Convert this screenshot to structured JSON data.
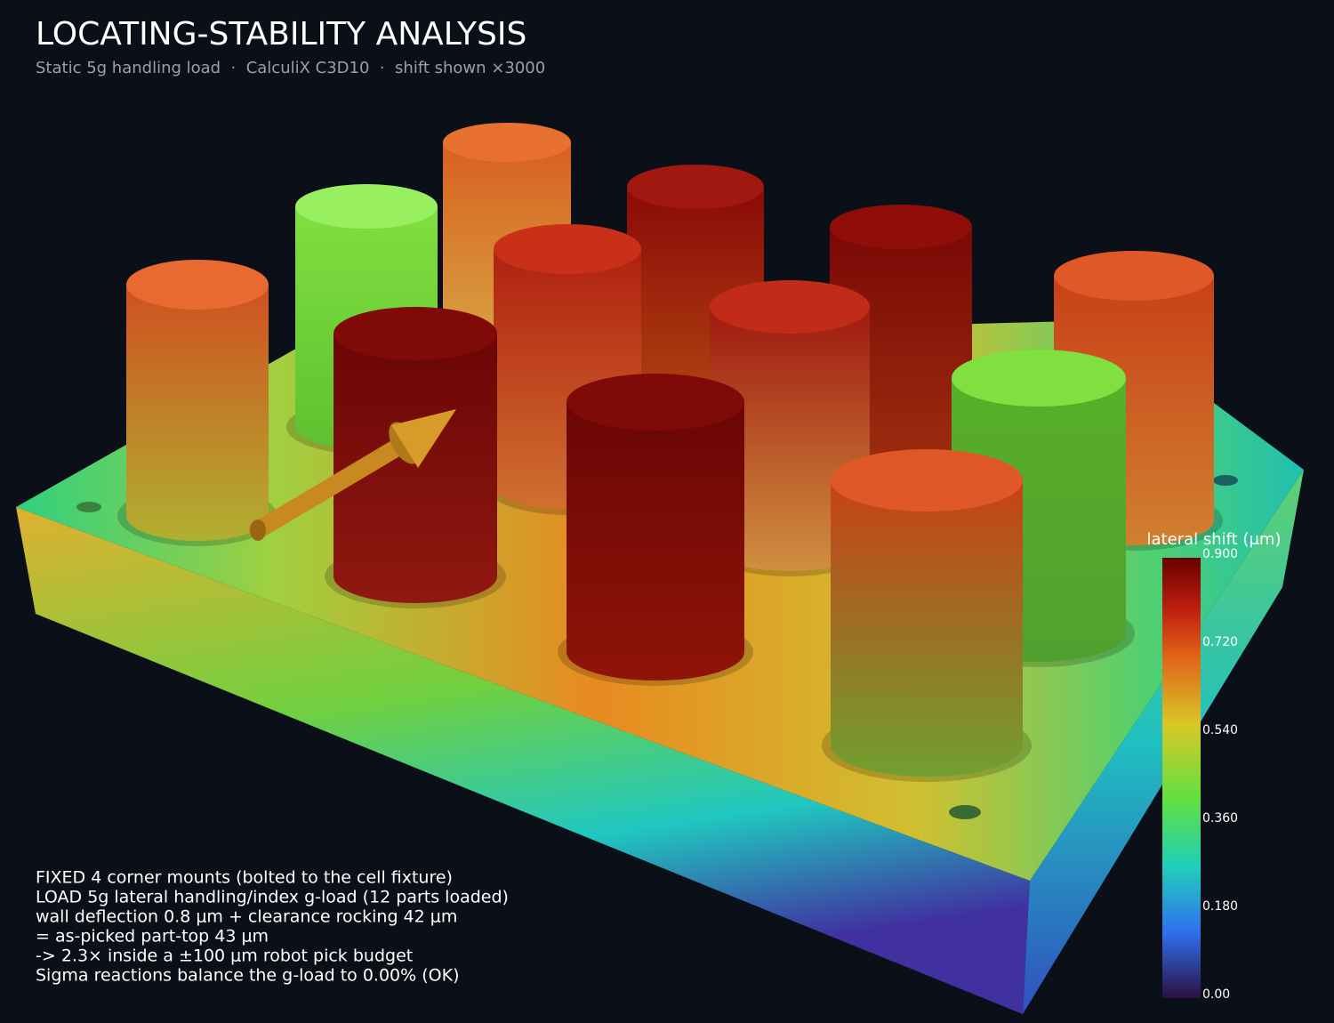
{
  "header": {
    "title": "LOCATING-STABILITY ANALYSIS",
    "subtitle": "Static 5g handling load  ·  CalculiX C3D10  ·  shift shown ×3000"
  },
  "colorbar": {
    "title": "lateral shift (μm)",
    "ticks": [
      "0.900",
      "0.720",
      "0.540",
      "0.360",
      "0.180",
      "0.00"
    ]
  },
  "notes": [
    "FIXED  4 corner mounts (bolted to the cell fixture)",
    "LOAD  5g lateral handling/index g-load (12 parts loaded)",
    "wall deflection 0.8 μm + clearance rocking 42 μm",
    "= as-picked part-top 43 μm",
    "-> 2.3× inside a ±100 μm robot pick budget",
    "Sigma reactions balance the g-load to 0.00%  (OK)"
  ]
}
